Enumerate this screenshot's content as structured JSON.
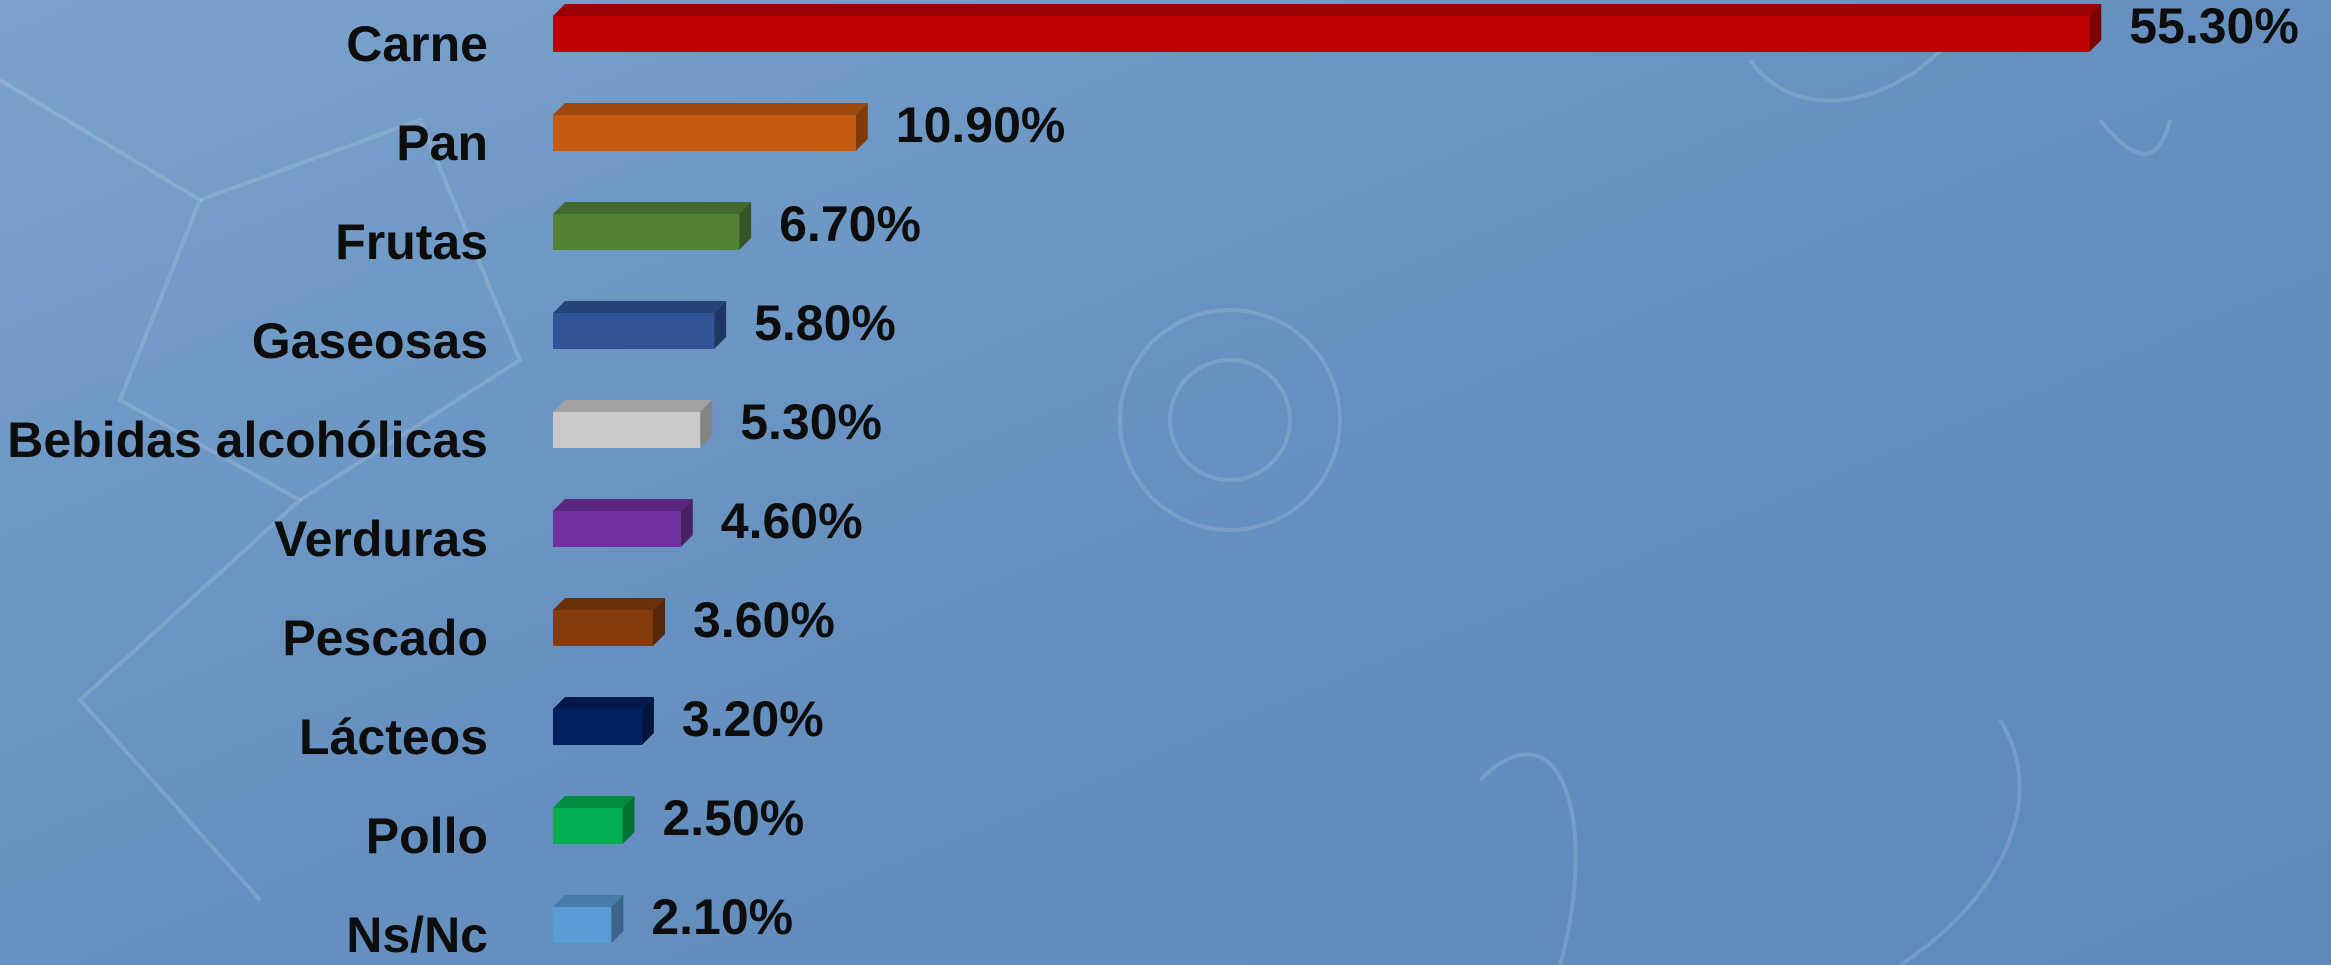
{
  "chart_data": {
    "type": "barh",
    "categories": [
      "Carne",
      "Pan",
      "Frutas",
      "Gaseosas",
      "Bebidas alcohólicas",
      "Verduras",
      "Pescado",
      "Lácteos",
      "Pollo",
      "Ns/Nc"
    ],
    "values": [
      55.3,
      10.9,
      6.7,
      5.8,
      5.3,
      4.6,
      3.6,
      3.2,
      2.5,
      2.1
    ],
    "value_labels": [
      "55.30%",
      "10.90%",
      "6.70%",
      "5.80%",
      "5.30%",
      "4.60%",
      "3.60%",
      "3.20%",
      "2.50%",
      "2.10%"
    ],
    "colors": [
      "#c00000",
      "#c55a11",
      "#548235",
      "#2f5597",
      "#c9c9c9",
      "#7030a0",
      "#843c0c",
      "#002060",
      "#00b050",
      "#5b9bd5"
    ]
  }
}
